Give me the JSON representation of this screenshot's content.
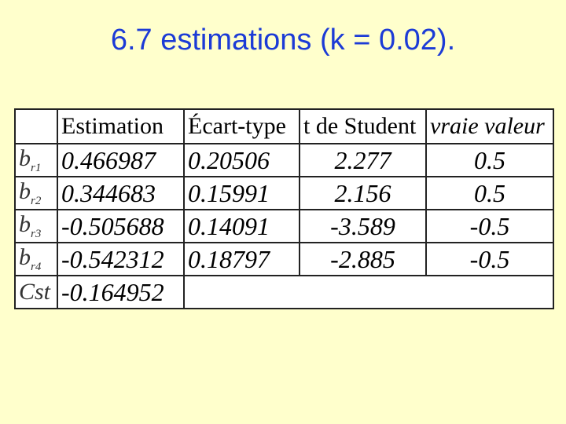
{
  "title": "6.7 estimations (k = 0.02).",
  "table": {
    "header": [
      "Estimation",
      "Écart-type",
      "t de Student",
      "vraie valeur"
    ],
    "rows": [
      {
        "label": {
          "base": "b",
          "sub": "r1"
        },
        "cells": [
          "0.466987",
          "0.20506",
          "2.277",
          "0.5"
        ]
      },
      {
        "label": {
          "base": "b",
          "sub": "r2"
        },
        "cells": [
          "0.344683",
          "0.15991",
          "2.156",
          "0.5"
        ]
      },
      {
        "label": {
          "base": "b",
          "sub": "r3"
        },
        "cells": [
          "-0.505688",
          "0.14091",
          "-3.589",
          "-0.5"
        ]
      },
      {
        "label": {
          "base": "b",
          "sub": "r4"
        },
        "cells": [
          "-0.542312",
          "0.18797",
          "-2.885",
          "-0.5"
        ]
      },
      {
        "label": {
          "base": "Cst"
        },
        "cells": [
          "-0.164952"
        ]
      }
    ]
  }
}
